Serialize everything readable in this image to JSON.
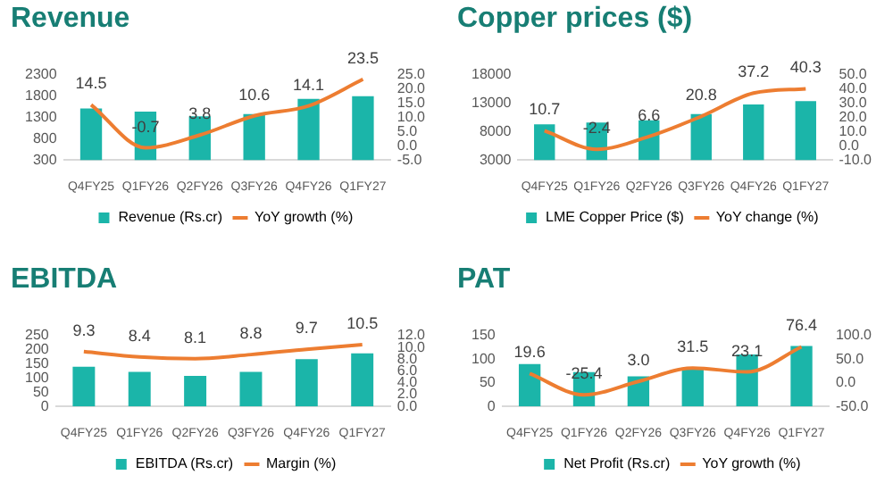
{
  "chart_data": [
    {
      "type": "bar",
      "title": "Revenue",
      "categories": [
        "Q4FY25",
        "Q1FY26",
        "Q2FY26",
        "Q3FY26",
        "Q4FY26",
        "Q1FY27"
      ],
      "series": [
        {
          "name": "Revenue (Rs.cr)",
          "type": "bar",
          "color": "#1bb5a9",
          "values": [
            1510,
            1440,
            1330,
            1380,
            1740,
            1800
          ]
        },
        {
          "name": "YoY growth (%)",
          "type": "line",
          "axis": "y2",
          "color": "#ed7d31",
          "values": [
            14.5,
            -0.7,
            3.8,
            10.6,
            14.1,
            23.5
          ],
          "value_labels": [
            "14.5",
            "-0.7",
            "3.8",
            "10.6",
            "14.1",
            "23.5"
          ]
        }
      ],
      "ylim": [
        300,
        2300
      ],
      "yticks": [
        300,
        800,
        1300,
        1800,
        2300
      ],
      "y2lim": [
        -5,
        25
      ],
      "y2ticks": [
        {
          "value": -5,
          "label": "-5.0"
        },
        {
          "value": 0,
          "label": "0.0"
        },
        {
          "value": 5,
          "label": "5.0"
        },
        {
          "value": 10,
          "label": "10.0"
        },
        {
          "value": 15,
          "label": "15.0"
        },
        {
          "value": 20,
          "label": "20.0"
        },
        {
          "value": 25,
          "label": "25.0"
        }
      ],
      "legend": "bottom",
      "marker": "none"
    },
    {
      "type": "bar",
      "title": "Copper prices ($)",
      "categories": [
        "Q4FY25",
        "Q1FY26",
        "Q2FY26",
        "Q3FY26",
        "Q4FY26",
        "Q1FY27"
      ],
      "series": [
        {
          "name": "LME Copper Price ($)",
          "type": "bar",
          "color": "#1bb5a9",
          "values": [
            9300,
            9600,
            10000,
            11100,
            12800,
            13400
          ]
        },
        {
          "name": "YoY change (%)",
          "type": "line",
          "axis": "y2",
          "color": "#ed7d31",
          "values": [
            10.7,
            -2.4,
            6.6,
            20.8,
            37.2,
            40.3
          ],
          "value_labels": [
            "10.7",
            "-2.4",
            "6.6",
            "20.8",
            "37.2",
            "40.3"
          ]
        }
      ],
      "ylim": [
        3000,
        18000
      ],
      "yticks": [
        3000,
        8000,
        13000,
        18000
      ],
      "y2lim": [
        -10,
        50
      ],
      "y2ticks": [
        {
          "value": -10,
          "label": "-10.0"
        },
        {
          "value": 0,
          "label": "0.0"
        },
        {
          "value": 10,
          "label": "10.0"
        },
        {
          "value": 20,
          "label": "20.0"
        },
        {
          "value": 30,
          "label": "30.0"
        },
        {
          "value": 40,
          "label": "40.0"
        },
        {
          "value": 50,
          "label": "50.0"
        }
      ],
      "legend": "bottom",
      "marker": "none"
    },
    {
      "type": "bar",
      "title": "EBITDA",
      "categories": [
        "Q4FY25",
        "Q1FY26",
        "Q2FY26",
        "Q3FY26",
        "Q4FY26",
        "Q1FY27"
      ],
      "series": [
        {
          "name": "EBITDA (Rs.cr)",
          "type": "bar",
          "color": "#1bb5a9",
          "values": [
            140,
            122,
            108,
            122,
            167,
            188
          ]
        },
        {
          "name": "Margin (%)",
          "type": "line",
          "axis": "y2",
          "color": "#ed7d31",
          "values": [
            9.3,
            8.4,
            8.1,
            8.8,
            9.7,
            10.5
          ],
          "value_labels": [
            "9.3",
            "8.4",
            "8.1",
            "8.8",
            "9.7",
            "10.5"
          ]
        }
      ],
      "ylim": [
        0,
        250
      ],
      "yticks": [
        0,
        50,
        100,
        150,
        200,
        250
      ],
      "y2lim": [
        0,
        12
      ],
      "y2ticks": [
        {
          "value": 0,
          "label": "0.0"
        },
        {
          "value": 2,
          "label": "2.0"
        },
        {
          "value": 4,
          "label": "4.0"
        },
        {
          "value": 6,
          "label": "6.0"
        },
        {
          "value": 8,
          "label": "8.0"
        },
        {
          "value": 10,
          "label": "10.0"
        },
        {
          "value": 12,
          "label": "12.0"
        }
      ],
      "legend": "bottom",
      "marker": "none"
    },
    {
      "type": "bar",
      "title": "PAT",
      "categories": [
        "Q4FY25",
        "Q1FY26",
        "Q2FY26",
        "Q3FY26",
        "Q4FY26",
        "Q1FY27"
      ],
      "series": [
        {
          "name": "Net Profit (Rs.cr)",
          "type": "bar",
          "color": "#1bb5a9",
          "values": [
            90,
            73,
            64,
            78,
            110,
            128
          ]
        },
        {
          "name": "YoY growth (%)",
          "type": "line",
          "axis": "y2",
          "color": "#ed7d31",
          "values": [
            19.6,
            -25.4,
            3.0,
            31.5,
            23.1,
            76.4
          ],
          "value_labels": [
            "19.6",
            "-25.4",
            "3.0",
            "31.5",
            "23.1",
            "76.4"
          ]
        }
      ],
      "ylim": [
        0,
        150
      ],
      "yticks": [
        0,
        50,
        100,
        150
      ],
      "y2lim": [
        -50,
        100
      ],
      "y2ticks": [
        {
          "value": -50,
          "label": "-50.0"
        },
        {
          "value": 0,
          "label": "0.0"
        },
        {
          "value": 50,
          "label": "50.0"
        },
        {
          "value": 100,
          "label": "100.0"
        }
      ],
      "legend": "bottom",
      "marker": "none"
    }
  ]
}
